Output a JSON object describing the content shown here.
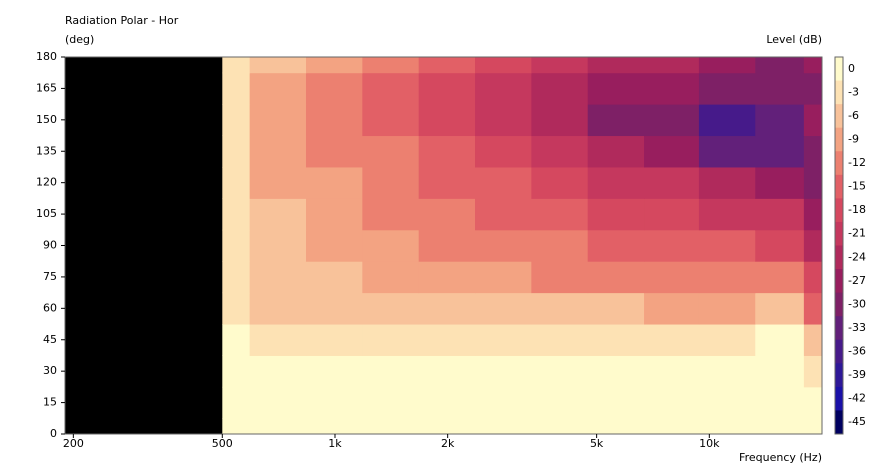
{
  "chart_data": {
    "type": "contour",
    "title": "Radiation Polar - Hor",
    "y_label": "(deg)",
    "x_label": "Frequency (Hz)",
    "colorbar_label": "Level (dB)",
    "log_x": true,
    "xlim": [
      190,
      20000
    ],
    "ylim": [
      0,
      180
    ],
    "xticks": [
      200,
      500,
      {
        "value": 1000,
        "label": "1k"
      },
      {
        "value": 2000,
        "label": "2k"
      },
      {
        "value": 5000,
        "label": "5k"
      },
      {
        "value": 10000,
        "label": "10k"
      }
    ],
    "yticks": [
      0,
      15,
      30,
      45,
      60,
      75,
      90,
      105,
      120,
      135,
      150,
      165,
      180
    ],
    "colorbar_ticks": [
      0,
      -3,
      -6,
      -9,
      -12,
      -15,
      -18,
      -21,
      -24,
      -27,
      -30,
      -33,
      -36,
      -39,
      -42,
      -45
    ],
    "colors": [
      "#fffbcc",
      "#fde2b4",
      "#f8c29a",
      "#f3a382",
      "#ec8070",
      "#e26066",
      "#d5485f",
      "#c5385e",
      "#b02a5c",
      "#981e5e",
      "#7e2066",
      "#62207a",
      "#461a8a",
      "#2e1898",
      "#1a10a8",
      "#000060"
    ],
    "x": [
      500,
      700,
      1000,
      1400,
      2000,
      2800,
      4000,
      5600,
      8000,
      11000,
      16000,
      20000
    ],
    "y": [
      0,
      15,
      30,
      45,
      60,
      75,
      90,
      105,
      120,
      135,
      150,
      165,
      180
    ],
    "z": [
      [
        0,
        0,
        0,
        0,
        0,
        0,
        0,
        0,
        0,
        0,
        0,
        0
      ],
      [
        0,
        0,
        0,
        0,
        0,
        0,
        0,
        0,
        0,
        0,
        0,
        -1
      ],
      [
        -1,
        -1,
        -1,
        -1,
        -1,
        -1,
        -1,
        -1,
        -1,
        -1,
        -1,
        -3
      ],
      [
        -2,
        -3,
        -3,
        -3.5,
        -3.5,
        -3.5,
        -3.5,
        -3.5,
        -3.5,
        -3.5,
        -2,
        -6
      ],
      [
        -4,
        -6,
        -6,
        -7,
        -7,
        -7,
        -8,
        -8,
        -9,
        -9,
        -8,
        -15
      ],
      [
        -5,
        -7,
        -8,
        -9,
        -10,
        -11,
        -12,
        -12,
        -13,
        -13,
        -13,
        -20
      ],
      [
        -5,
        -8,
        -9,
        -11,
        -12,
        -13,
        -14,
        -15,
        -16,
        -17,
        -18,
        -25
      ],
      [
        -5,
        -8,
        -10,
        -12,
        -14,
        -15,
        -16,
        -18,
        -19,
        -21,
        -22,
        -27
      ],
      [
        -5,
        -9,
        -11,
        -13,
        -15,
        -17,
        -19,
        -21,
        -23,
        -26,
        -28,
        -30
      ],
      [
        -5,
        -9,
        -12,
        -14,
        -16,
        -19,
        -22,
        -25,
        -29,
        -33,
        -35,
        -30
      ],
      [
        -5,
        -9,
        -12,
        -15,
        -18,
        -21,
        -25,
        -30,
        -32,
        -36,
        -33,
        -28
      ],
      [
        -4,
        -9,
        -12,
        -15,
        -18,
        -21,
        -24,
        -27,
        -28,
        -30,
        -32,
        -30
      ],
      [
        -3,
        -8,
        -11,
        -14,
        -17,
        -20,
        -22,
        -24,
        -26,
        -27,
        -30,
        -28
      ]
    ]
  }
}
